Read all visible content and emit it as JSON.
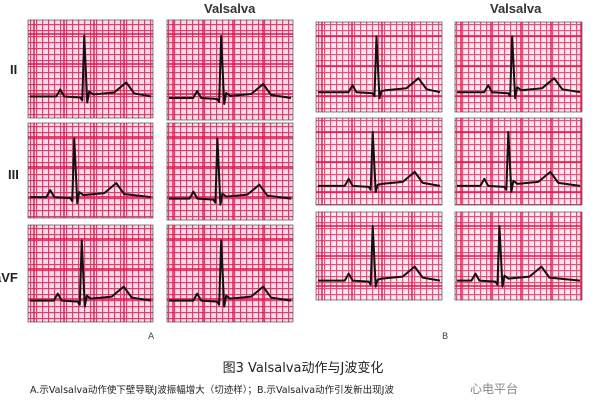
{
  "leads": [
    "II",
    "III",
    "aVF"
  ],
  "maneuver_label": "Valsalva",
  "panels": [
    {
      "label": "A"
    },
    {
      "label": "B"
    }
  ],
  "figure_title": "图3  Valsalva动作与J波变化",
  "caption": "A.示Valsalva动作使下壁导联J波振幅增大（切迹样）；B.示Valsalva动作引发新出现J波",
  "watermark": "心电平台",
  "colors": {
    "grid_bg": "#e23a72",
    "grid_line": "#ffffff",
    "major_line": "#e8124a",
    "trace": "#111111"
  }
}
